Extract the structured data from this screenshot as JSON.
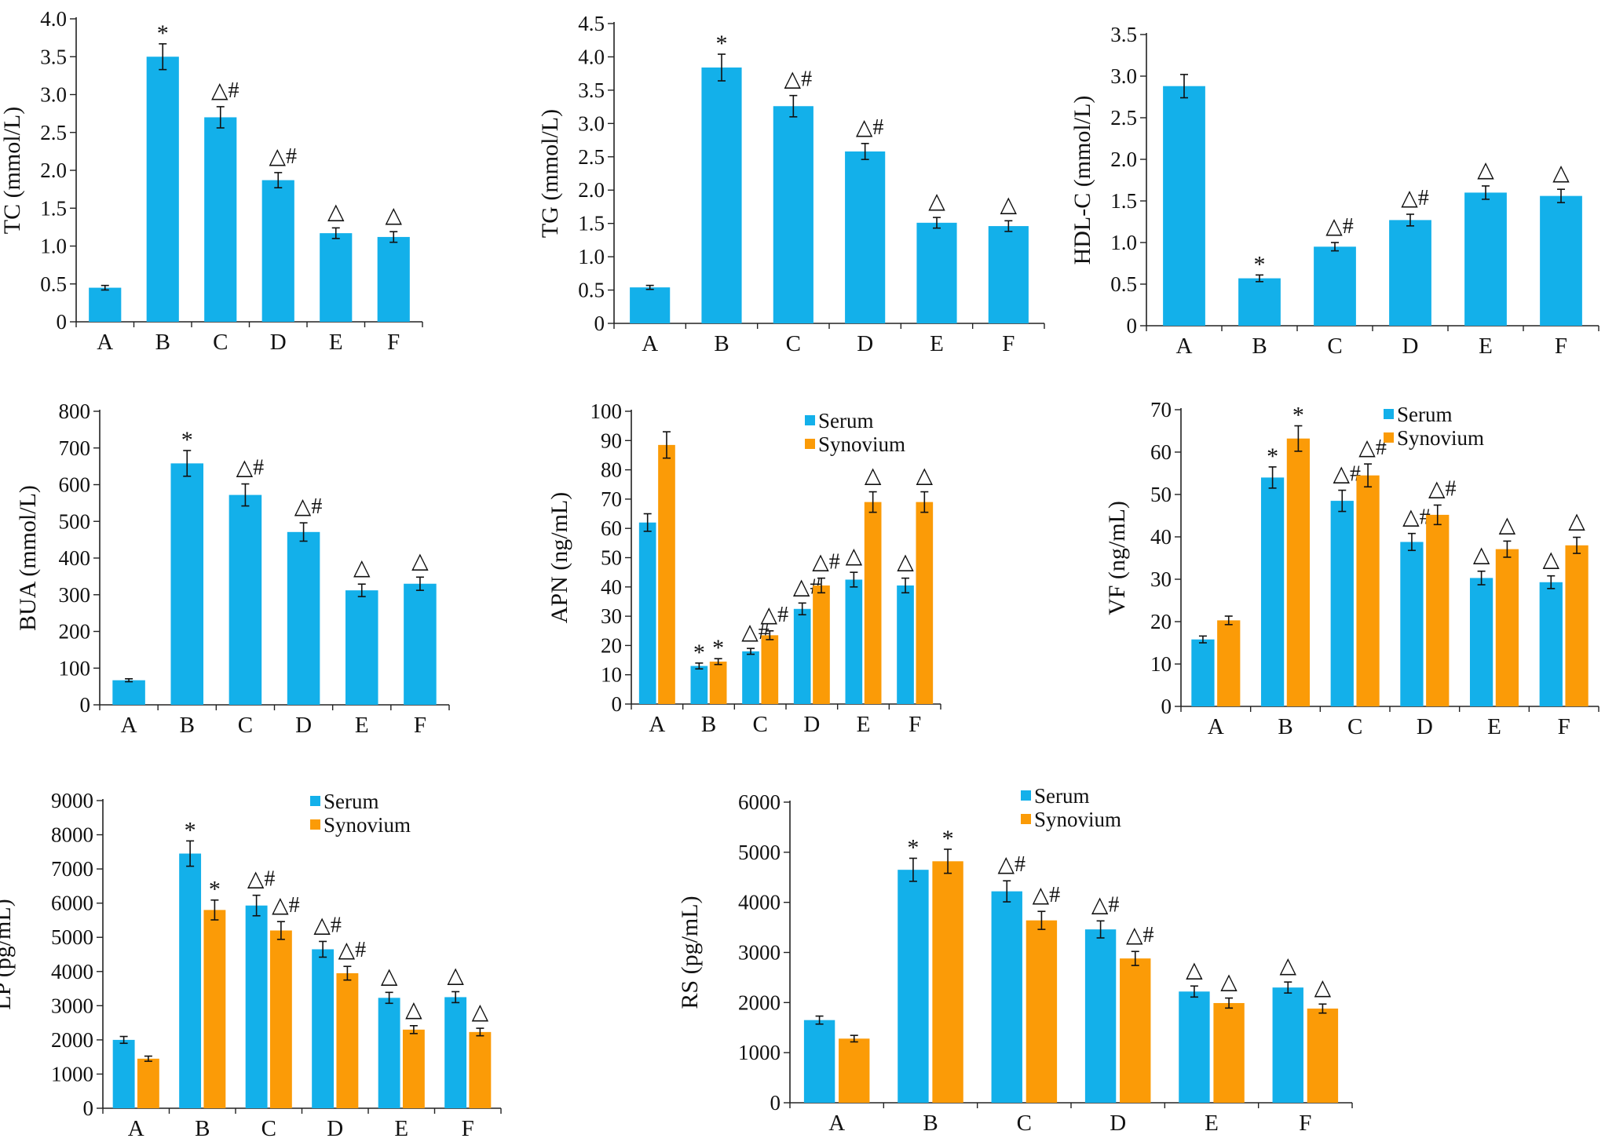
{
  "colors": {
    "serum": "#13b0ea",
    "synovium": "#fb9b07",
    "axis": "#222222",
    "error": "#111111"
  },
  "chart_data": [
    {
      "type": "bar",
      "ylabel": "TC (mmol/L)",
      "categories": [
        "A",
        "B",
        "C",
        "D",
        "E",
        "F"
      ],
      "yticks": [
        "0",
        "0.5",
        "1.0",
        "1.5",
        "2.0",
        "2.5",
        "3.0",
        "3.5",
        "4.0"
      ],
      "ylim": [
        0,
        4.0
      ],
      "series": [
        {
          "values": [
            0.45,
            3.5,
            2.7,
            1.87,
            1.17,
            1.12
          ],
          "errors": [
            0.03,
            0.17,
            0.14,
            0.1,
            0.07,
            0.07
          ],
          "marks": [
            "",
            "*",
            "△#",
            "△#",
            "△",
            "△"
          ]
        }
      ]
    },
    {
      "type": "bar",
      "ylabel": "TG (mmol/L)",
      "categories": [
        "A",
        "B",
        "C",
        "D",
        "E",
        "F"
      ],
      "yticks": [
        "0",
        "0.5",
        "1.0",
        "1.5",
        "2.0",
        "2.5",
        "3.0",
        "3.5",
        "4.0",
        "4.5"
      ],
      "ylim": [
        0,
        4.5
      ],
      "series": [
        {
          "values": [
            0.54,
            3.84,
            3.26,
            2.58,
            1.51,
            1.46
          ],
          "errors": [
            0.03,
            0.2,
            0.16,
            0.12,
            0.08,
            0.08
          ],
          "marks": [
            "",
            "*",
            "△#",
            "△#",
            "△",
            "△"
          ]
        }
      ]
    },
    {
      "type": "bar",
      "ylabel": "HDL-C (mmol/L)",
      "categories": [
        "A",
        "B",
        "C",
        "D",
        "E",
        "F"
      ],
      "yticks": [
        "0",
        "0.5",
        "1.0",
        "1.5",
        "2.0",
        "2.5",
        "3.0",
        "3.5"
      ],
      "ylim": [
        0,
        3.5
      ],
      "series": [
        {
          "values": [
            2.88,
            0.57,
            0.95,
            1.27,
            1.6,
            1.56
          ],
          "errors": [
            0.14,
            0.04,
            0.05,
            0.07,
            0.08,
            0.08
          ],
          "marks": [
            "",
            "*",
            "△#",
            "△#",
            "△",
            "△"
          ]
        }
      ]
    },
    {
      "type": "bar",
      "ylabel": "BUA (mmol/L)",
      "categories": [
        "A",
        "B",
        "C",
        "D",
        "E",
        "F"
      ],
      "yticks": [
        "0",
        "100",
        "200",
        "300",
        "400",
        "500",
        "600",
        "700",
        "800"
      ],
      "ylim": [
        0,
        800
      ],
      "series": [
        {
          "values": [
            67,
            658,
            572,
            471,
            312,
            330
          ],
          "errors": [
            4,
            35,
            30,
            25,
            17,
            18
          ],
          "marks": [
            "",
            "*",
            "△#",
            "△#",
            "△",
            "△"
          ]
        }
      ]
    },
    {
      "type": "bar",
      "ylabel": "APN (ng/mL)",
      "categories": [
        "A",
        "B",
        "C",
        "D",
        "E",
        "F"
      ],
      "yticks": [
        "0",
        "10",
        "20",
        "30",
        "40",
        "50",
        "60",
        "70",
        "80",
        "90",
        "100"
      ],
      "ylim": [
        0,
        100
      ],
      "legend": [
        "Serum",
        "Synovium"
      ],
      "series": [
        {
          "name": "Serum",
          "values": [
            62,
            13,
            18,
            32.5,
            42.5,
            40.5
          ],
          "errors": [
            3,
            1,
            1,
            2,
            2.5,
            2.5
          ],
          "marks": [
            "",
            "*",
            "△#",
            "△#",
            "△",
            "△"
          ]
        },
        {
          "name": "Synovium",
          "values": [
            88.5,
            14.5,
            23.5,
            40.5,
            69,
            69
          ],
          "errors": [
            4.5,
            1,
            1.5,
            2.5,
            3.5,
            3.5
          ],
          "marks": [
            "",
            "*",
            "△#",
            "△#",
            "△",
            "△"
          ]
        }
      ]
    },
    {
      "type": "bar",
      "ylabel": "VF (ng/mL)",
      "categories": [
        "A",
        "B",
        "C",
        "D",
        "E",
        "F"
      ],
      "yticks": [
        "0",
        "10",
        "20",
        "30",
        "40",
        "50",
        "60",
        "70"
      ],
      "ylim": [
        0,
        70
      ],
      "legend": [
        "Serum",
        "Synovium"
      ],
      "series": [
        {
          "name": "Serum",
          "values": [
            15.8,
            54,
            48.5,
            38.8,
            30.3,
            29.3
          ],
          "errors": [
            0.8,
            2.5,
            2.5,
            2,
            1.6,
            1.5
          ],
          "marks": [
            "",
            "*",
            "△#",
            "△#",
            "△",
            "△"
          ]
        },
        {
          "name": "Synovium",
          "values": [
            20.3,
            63.2,
            54.5,
            45.2,
            37.1,
            38
          ],
          "errors": [
            1,
            3,
            2.7,
            2.3,
            1.9,
            1.9
          ],
          "marks": [
            "",
            "*",
            "△#",
            "△#",
            "△",
            "△"
          ]
        }
      ]
    },
    {
      "type": "bar",
      "ylabel": "LP (pg/mL)",
      "categories": [
        "A",
        "B",
        "C",
        "D",
        "E",
        "F"
      ],
      "yticks": [
        "0",
        "1000",
        "2000",
        "3000",
        "4000",
        "5000",
        "6000",
        "7000",
        "8000",
        "9000"
      ],
      "ylim": [
        0,
        9000
      ],
      "legend": [
        "Serum",
        "Synovium"
      ],
      "series": [
        {
          "name": "Serum",
          "values": [
            2000,
            7450,
            5930,
            4650,
            3230,
            3250
          ],
          "errors": [
            100,
            370,
            300,
            230,
            160,
            160
          ],
          "marks": [
            "",
            "*",
            "△#",
            "△#",
            "△",
            "△"
          ]
        },
        {
          "name": "Synovium",
          "values": [
            1450,
            5800,
            5200,
            3950,
            2300,
            2230
          ],
          "errors": [
            75,
            290,
            260,
            200,
            115,
            110
          ],
          "marks": [
            "",
            "*",
            "△#",
            "△#",
            "△",
            "△"
          ]
        }
      ]
    },
    {
      "type": "bar",
      "ylabel": "RS (pg/mL)",
      "categories": [
        "A",
        "B",
        "C",
        "D",
        "E",
        "F"
      ],
      "yticks": [
        "0",
        "1000",
        "2000",
        "3000",
        "4000",
        "5000",
        "6000"
      ],
      "ylim": [
        0,
        6000
      ],
      "legend": [
        "Serum",
        "Synovium"
      ],
      "series": [
        {
          "name": "Serum",
          "values": [
            1650,
            4650,
            4220,
            3460,
            2220,
            2300
          ],
          "errors": [
            80,
            230,
            210,
            170,
            110,
            110
          ],
          "marks": [
            "",
            "*",
            "△#",
            "△#",
            "△",
            "△"
          ]
        },
        {
          "name": "Synovium",
          "values": [
            1280,
            4820,
            3640,
            2880,
            1990,
            1880
          ],
          "errors": [
            65,
            240,
            180,
            140,
            100,
            90
          ],
          "marks": [
            "",
            "*",
            "△#",
            "△#",
            "△",
            "△"
          ]
        }
      ]
    }
  ]
}
